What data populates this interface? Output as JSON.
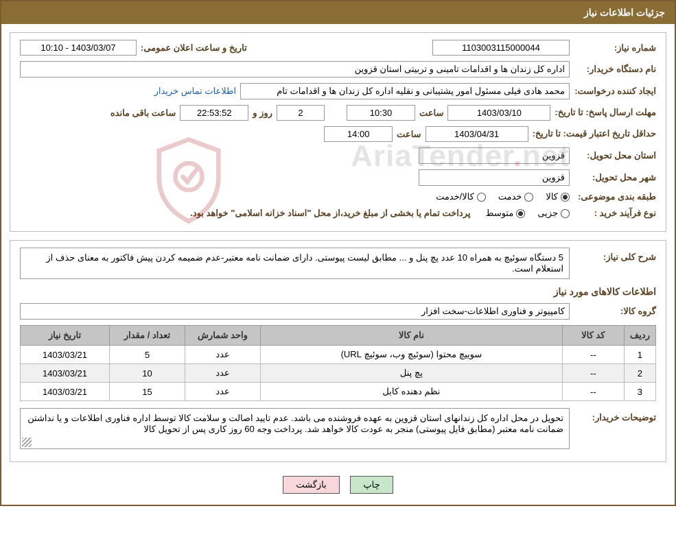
{
  "header": {
    "title": "جزئیات اطلاعات نیاز"
  },
  "watermark": {
    "text_left": "AriaTender",
    "dot": ".",
    "text_right": "net"
  },
  "panel1": {
    "need_number_label": "شماره نیاز:",
    "need_number": "1103003115000044",
    "announce_label": "تاریخ و ساعت اعلان عمومی:",
    "announce_value": "1403/03/07 - 10:10",
    "buyer_org_label": "نام دستگاه خریدار:",
    "buyer_org": "اداره کل زندان ها و اقدامات تامینی و تربیتی استان قزوین",
    "requester_label": "ایجاد کننده درخواست:",
    "requester": "محمد هادی فیلی مسئول امور پشتیبانی و نقلیه اداره کل زندان ها و اقدامات تام",
    "contact_link": "اطلاعات تماس خریدار",
    "deadline_send_label": "مهلت ارسال پاسخ: تا تاریخ:",
    "deadline_send_date": "1403/03/10",
    "hour_label": "ساعت",
    "deadline_send_time": "10:30",
    "days_value": "2",
    "days_label": "روز و",
    "remaining_time": "22:53:52",
    "remaining_label": "ساعت باقی مانده",
    "validity_label": "حداقل تاریخ اعتبار قیمت: تا تاریخ:",
    "validity_date": "1403/04/31",
    "validity_time": "14:00",
    "province_label": "استان محل تحویل:",
    "province": "قزوین",
    "city_label": "شهر محل تحویل:",
    "city": "قزوین",
    "category_label": "طبقه بندی موضوعی:",
    "cat_goods": "کالا",
    "cat_service": "خدمت",
    "cat_goods_service": "کالا/خدمت",
    "process_label": "نوع فرآیند خرید :",
    "proc_small": "جزیی",
    "proc_medium": "متوسط",
    "process_desc": "پرداخت تمام یا بخشی از مبلغ خرید،از محل \"اسناد خزانه اسلامی\" خواهد بود."
  },
  "panel2": {
    "general_desc_label": "شرح کلی نیاز:",
    "general_desc": "5 دستگاه سوئیچ به همراه 10 عدد پچ پنل و ... مطابق لیست پیوستی. دارای ضمانت نامه معتبر-عدم ضمیمه کردن پیش فاکتور به معنای حذف از استعلام است.",
    "needed_goods_title": "اطلاعات کالاهای مورد نیاز",
    "group_label": "گروه کالا:",
    "group_value": "کامپیوتر و فناوری اطلاعات-سخت افزار",
    "table": {
      "columns": [
        "ردیف",
        "کد کالا",
        "نام کالا",
        "واحد شمارش",
        "تعداد / مقدار",
        "تاریخ نیاز"
      ],
      "rows": [
        [
          "1",
          "--",
          "سوییچ محتوا (سوئیچ وب، سوئیچ URL)",
          "عدد",
          "5",
          "1403/03/21"
        ],
        [
          "2",
          "--",
          "پچ پنل",
          "عدد",
          "10",
          "1403/03/21"
        ],
        [
          "3",
          "--",
          "نظم دهنده کابل",
          "عدد",
          "15",
          "1403/03/21"
        ]
      ],
      "col_widths": [
        "45px",
        "90px",
        "auto",
        "110px",
        "110px",
        "130px"
      ]
    },
    "buyer_notes_label": "توضیحات خریدار:",
    "buyer_notes": "تحویل در محل اداره کل زندانهای استان قزوین به عهده فروشنده می باشد. عدم تایید اصالت و سلامت کالا توسط اداره فناوری اطلاعات و یا نداشتن ضمانت نامه معتبر (مطابق فایل پیوستی) منجر به عودت کالا خواهد شد. پرداخت وجه 60 روز کاری پس از تحویل کالا"
  },
  "buttons": {
    "print": "چاپ",
    "back": "بازگشت"
  },
  "colors": {
    "header_bg": "#8a6c35",
    "label_color": "#5a4020",
    "link_color": "#1a5fbf",
    "table_header_bg": "#c5c5c5",
    "print_btn_bg": "#c8e6c9",
    "back_btn_bg": "#f8d7da"
  }
}
